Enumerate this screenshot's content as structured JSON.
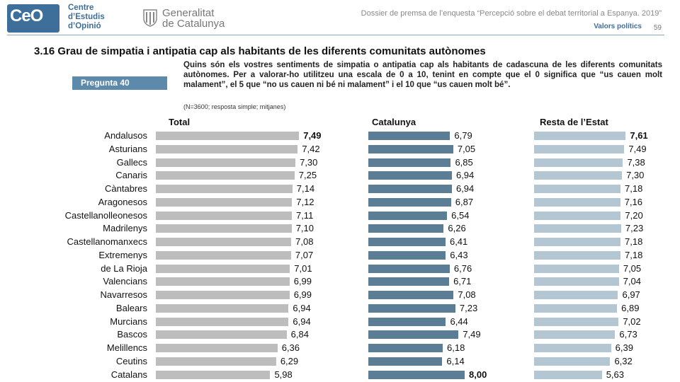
{
  "header": {
    "logo_text": "CeO",
    "org_lines": [
      "Centre",
      "d’Estudis",
      "d’Opinió"
    ],
    "gov_lines": [
      "Generalitat",
      "de Catalunya"
    ],
    "dossier": "Dossier de premsa de l’enquesta “Percepció sobre el debat territorial a Espanya. 2019”",
    "section": "Valors polítics",
    "page": "59"
  },
  "heading": "3.16 Grau de simpatia i antipatia cap als habitants de les diferents comunitats autònomes",
  "question": {
    "badge": "Pregunta  40",
    "text": "Quins són els vostres sentiments de simpatia o antipatia cap als habitants de cadascuna de les diferents comunitats autònomes. Per a valorar-ho utilitzeu una escala de 0 a 10, tenint en compte que el 0 significa que “us cauen molt malament”, el 5 que “no us cauen ni bé ni malament” i el 10 que “us cauen molt bé”.",
    "note": "(N=3600; resposta simple; mitjanes)"
  },
  "colors": {
    "total": "#bdbdbd",
    "catalunya": "#5b7d96",
    "resta": "#b5c6d3",
    "accent": "#3d6f9a"
  },
  "chart_data": {
    "type": "bar",
    "orientation": "horizontal",
    "categories": [
      "Andalusos",
      "Asturians",
      "Gallecs",
      "Canaris",
      "Càntabres",
      "Aragonesos",
      "Castellanolleonesos",
      "Madrilenys",
      "Castellanomanxecs",
      "Extremenys",
      "de La Rioja",
      "Valencians",
      "Navarresos",
      "Balears",
      "Murcians",
      "Bascos",
      "Melillencs",
      "Ceutins",
      "Catalans"
    ],
    "series": [
      {
        "name": "Total",
        "values": [
          7.49,
          7.42,
          7.3,
          7.25,
          7.14,
          7.12,
          7.11,
          7.1,
          7.08,
          7.07,
          7.01,
          6.99,
          6.99,
          6.94,
          6.94,
          6.84,
          6.36,
          6.29,
          5.98
        ],
        "labels": [
          "7,49",
          "7,42",
          "7,30",
          "7,25",
          "7,14",
          "7,12",
          "7,11",
          "7,10",
          "7,08",
          "7,07",
          "7,01",
          "6,99",
          "6,99",
          "6,94",
          "6,94",
          "6,84",
          "6,36",
          "6,29",
          "5,98"
        ],
        "bold_index": 0
      },
      {
        "name": "Catalunya",
        "values": [
          6.79,
          7.05,
          6.85,
          6.94,
          6.94,
          6.87,
          6.54,
          6.26,
          6.41,
          6.43,
          6.76,
          6.71,
          7.08,
          7.23,
          6.44,
          7.49,
          6.18,
          6.14,
          8.0
        ],
        "labels": [
          "6,79",
          "7,05",
          "6,85",
          "6,94",
          "6,94",
          "6,87",
          "6,54",
          "6,26",
          "6,41",
          "6,43",
          "6,76",
          "6,71",
          "7,08",
          "7,23",
          "6,44",
          "7,49",
          "6,18",
          "6,14",
          "8,00"
        ],
        "bold_index": 18
      },
      {
        "name": "Resta de l’Estat",
        "values": [
          7.61,
          7.49,
          7.38,
          7.3,
          7.18,
          7.16,
          7.2,
          7.23,
          7.18,
          7.18,
          7.05,
          7.04,
          6.97,
          6.89,
          7.02,
          6.73,
          6.39,
          6.32,
          5.63
        ],
        "labels": [
          "7,61",
          "7,49",
          "7,38",
          "7,30",
          "7,18",
          "7,16",
          "7,20",
          "7,23",
          "7,18",
          "7,18",
          "7,05",
          "7,04",
          "6,97",
          "6,89",
          "7,02",
          "6,73",
          "6,39",
          "6,32",
          "5,63"
        ],
        "bold_index": 0
      }
    ]
  }
}
